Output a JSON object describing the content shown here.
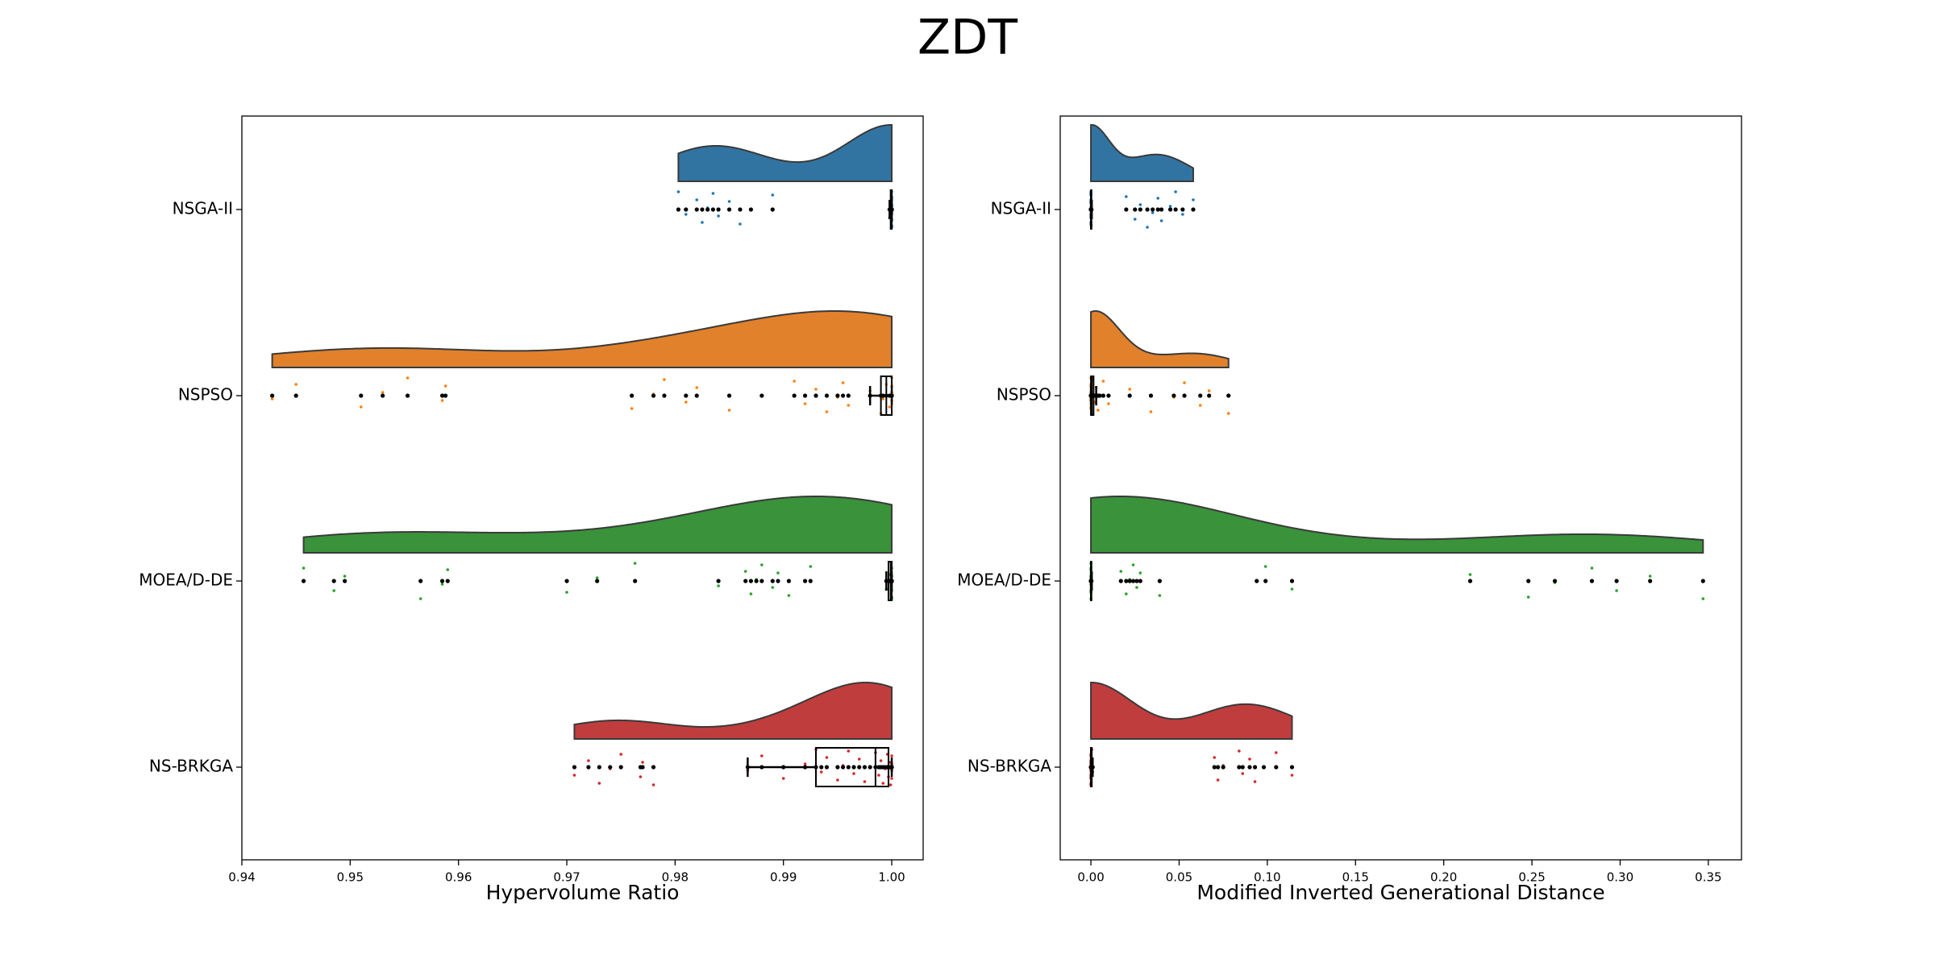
{
  "title": "ZDT",
  "chart_data": [
    {
      "type": "raincloud",
      "xlabel": "Hypervolume Ratio",
      "xlim": [
        0.94,
        1.0029
      ],
      "xticks": [
        0.94,
        0.95,
        0.96,
        0.97,
        0.98,
        0.99,
        {
          "value": 1,
          "label": "1.00"
        }
      ],
      "categories": [
        "NSGA-II",
        "NSPSO",
        "MOEA/D-DE",
        "NS-BRKGA"
      ],
      "colors": [
        "#3274a1",
        "#e1812c",
        "#3a923a",
        "#c03d3e"
      ],
      "point_colors": [
        "#1f77b4",
        "#ff7f0e",
        "#2ca02c",
        "#d62728"
      ],
      "values": [
        [
          0.9803,
          0.981,
          0.982,
          0.9825,
          0.983,
          0.9835,
          0.984,
          0.985,
          0.986,
          0.987,
          0.989,
          0.9998,
          0.9999,
          1.0,
          1.0,
          1.0,
          1.0,
          1.0,
          1.0,
          1.0,
          1.0,
          1.0,
          1.0,
          1.0,
          1.0,
          1.0
        ],
        [
          0.9428,
          0.945,
          0.951,
          0.953,
          0.9553,
          0.9585,
          0.9588,
          0.976,
          0.978,
          0.979,
          0.981,
          0.982,
          0.985,
          0.988,
          0.991,
          0.992,
          0.993,
          0.994,
          0.995,
          0.9955,
          0.996,
          0.998,
          0.999,
          0.9992,
          0.9995,
          0.9998,
          1.0,
          1.0,
          1.0,
          1.0
        ],
        [
          0.9457,
          0.9485,
          0.9495,
          0.9565,
          0.9585,
          0.959,
          0.97,
          0.9728,
          0.9763,
          0.984,
          0.9865,
          0.987,
          0.9875,
          0.988,
          0.989,
          0.9895,
          0.9905,
          0.992,
          0.9925,
          0.9995,
          0.9998,
          1.0,
          1.0,
          1.0,
          1.0,
          1.0,
          1.0
        ],
        [
          0.9707,
          0.972,
          0.973,
          0.974,
          0.975,
          0.9768,
          0.977,
          0.978,
          0.9867,
          0.988,
          0.99,
          0.992,
          0.993,
          0.9935,
          0.994,
          0.995,
          0.9955,
          0.996,
          0.9965,
          0.997,
          0.9975,
          0.998,
          0.9985,
          0.9988,
          0.999,
          0.9992,
          0.9994,
          0.9996,
          0.9997,
          0.9998,
          0.9999,
          1.0,
          1.0,
          1.0,
          1.0
        ]
      ],
      "boxes": [
        {
          "whislo": 0.9998,
          "q1": 0.9999,
          "median": 1.0,
          "q3": 1.0,
          "whishi": 1.0
        },
        {
          "whislo": 0.998,
          "q1": 0.999,
          "median": 0.9995,
          "q3": 1.0,
          "whishi": 1.0
        },
        {
          "whislo": 0.9995,
          "q1": 0.9997,
          "median": 0.9999,
          "q3": 1.0,
          "whishi": 1.0
        },
        {
          "whislo": 0.9867,
          "q1": 0.993,
          "median": 0.9985,
          "q3": 0.9997,
          "whishi": 1.0
        }
      ]
    },
    {
      "type": "raincloud",
      "xlabel": "Modified Inverted Generational Distance",
      "xlim": [
        -0.0174,
        0.3688
      ],
      "xticks": [
        {
          "value": 0,
          "label": "0.00"
        },
        0.05,
        {
          "value": 0.1,
          "label": "0.10"
        },
        0.15,
        {
          "value": 0.2,
          "label": "0.20"
        },
        0.25,
        {
          "value": 0.3,
          "label": "0.30"
        },
        0.35
      ],
      "categories": [
        "NSGA-II",
        "NSPSO",
        "MOEA/D-DE",
        "NS-BRKGA"
      ],
      "colors": [
        "#3274a1",
        "#e1812c",
        "#3a923a",
        "#c03d3e"
      ],
      "point_colors": [
        "#1f77b4",
        "#ff7f0e",
        "#2ca02c",
        "#d62728"
      ],
      "values": [
        [
          0,
          0,
          0,
          0,
          0,
          0,
          0,
          0,
          0,
          0,
          0,
          0,
          0,
          0.0002,
          0.0003,
          0.02,
          0.025,
          0.028,
          0.032,
          0.035,
          0.038,
          0.04,
          0.045,
          0.048,
          0.052,
          0.058
        ],
        [
          0,
          0,
          0,
          0,
          0,
          0,
          0,
          0,
          0.0005,
          0.001,
          0.002,
          0.003,
          0.004,
          0.005,
          0.007,
          0.01,
          0.022,
          0.034,
          0.047,
          0.053,
          0.062,
          0.067,
          0.078
        ],
        [
          0,
          0,
          0,
          0,
          0,
          0,
          0,
          0,
          0,
          0.0003,
          0.017,
          0.02,
          0.022,
          0.024,
          0.026,
          0.028,
          0.039,
          0.094,
          0.099,
          0.114,
          0.215,
          0.248,
          0.263,
          0.284,
          0.298,
          0.317,
          0.347
        ],
        [
          0,
          0,
          0,
          0,
          0,
          0,
          0,
          0,
          0,
          0,
          0,
          0,
          0.0005,
          0.001,
          0.07,
          0.072,
          0.075,
          0.084,
          0.086,
          0.09,
          0.093,
          0.098,
          0.105,
          0.114
        ]
      ],
      "boxes": [
        {
          "whislo": 0,
          "q1": 0,
          "median": 0,
          "q3": 0.0003,
          "whishi": 0.0005
        },
        {
          "whislo": 0,
          "q1": 0,
          "median": 0.0005,
          "q3": 0.0015,
          "whishi": 0.003
        },
        {
          "whislo": 0,
          "q1": 0,
          "median": 0,
          "q3": 0.0003,
          "whishi": 0.0005
        },
        {
          "whislo": 0,
          "q1": 0,
          "median": 0,
          "q3": 0.0005,
          "whishi": 0.001
        }
      ]
    }
  ]
}
